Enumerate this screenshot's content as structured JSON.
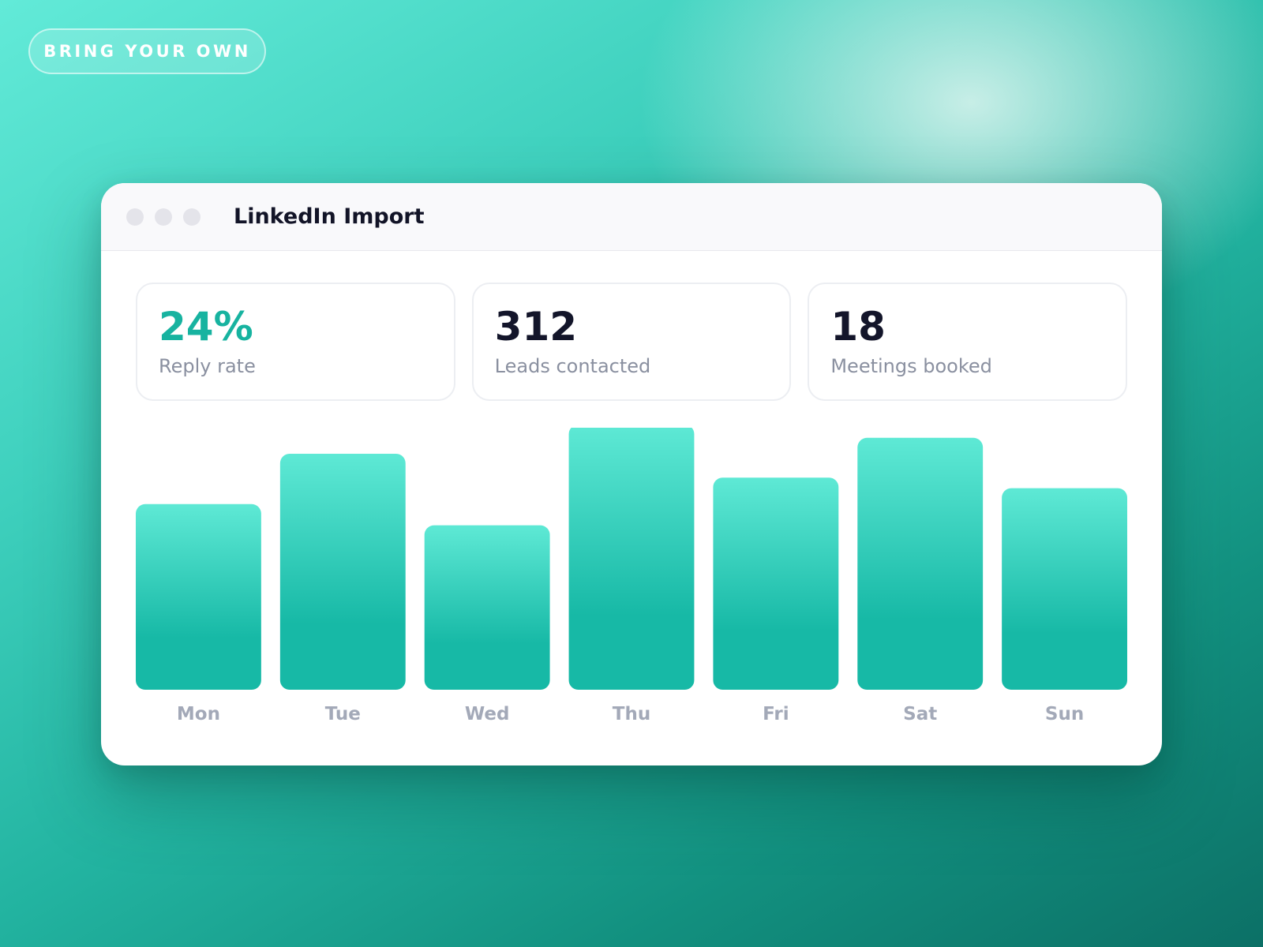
{
  "badge": {
    "label": "BRING YOUR OWN"
  },
  "window": {
    "title": "LinkedIn Import",
    "controls": [
      "close",
      "minimize",
      "maximize"
    ]
  },
  "stats": [
    {
      "value": "24%",
      "label": "Reply rate",
      "accent": "#17b3a0"
    },
    {
      "value": "312",
      "label": "Leads contacted"
    },
    {
      "value": "18",
      "label": "Meetings booked"
    }
  ],
  "colors": {
    "accent": "#17b3a0",
    "bar_top": "#5ee9d5",
    "bar_bottom": "#17b9a6",
    "axis_label": "#a3a9b8"
  },
  "chart_data": {
    "type": "bar",
    "categories": [
      "Mon",
      "Tue",
      "Wed",
      "Thu",
      "Fri",
      "Sat",
      "Sun"
    ],
    "values": [
      70,
      89,
      62,
      100,
      80,
      95,
      76
    ],
    "ylim": [
      0,
      100
    ],
    "grid": false,
    "legend": "none"
  }
}
